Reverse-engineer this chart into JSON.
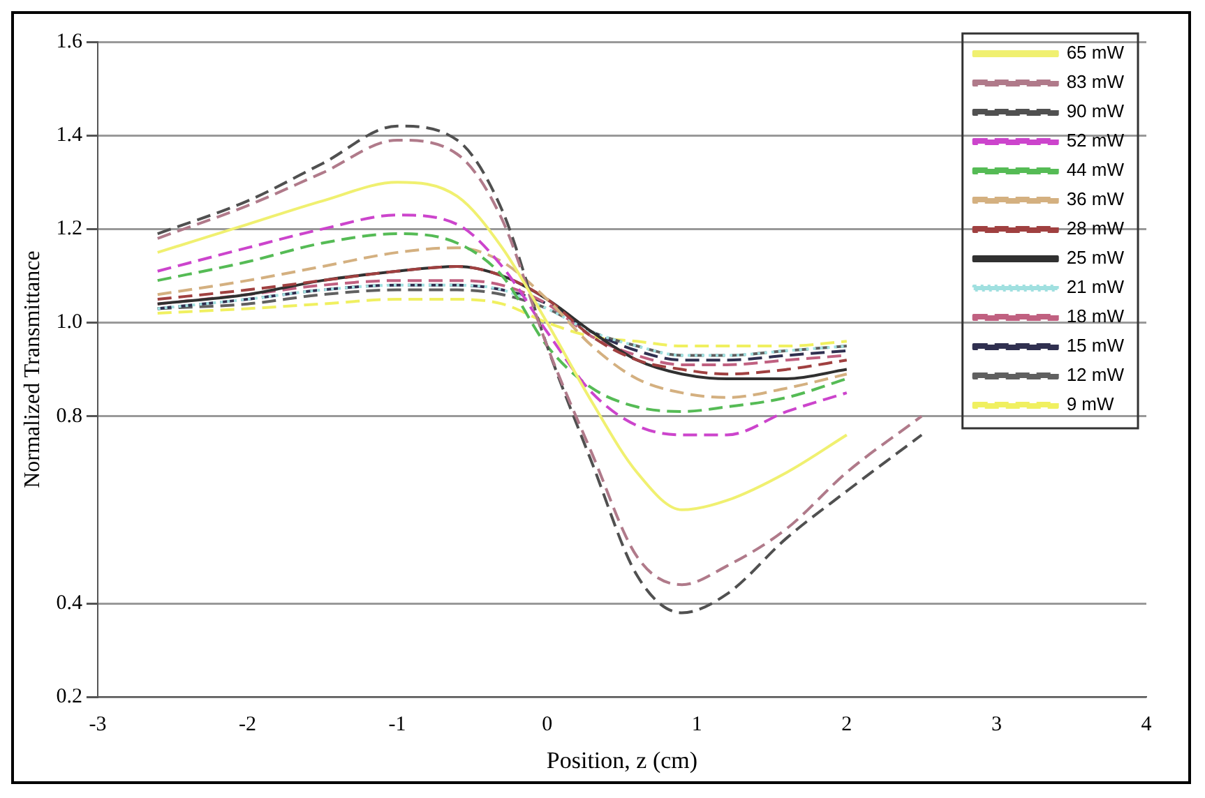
{
  "chart_data": {
    "type": "line",
    "xlabel": "Position, z (cm)",
    "ylabel": "Normalized Transmittance",
    "x": [
      -2.6,
      -2,
      -1.5,
      -1,
      -0.6,
      -0.3,
      0,
      0.3,
      0.6,
      0.9,
      1.2,
      1.6,
      2,
      2.5
    ],
    "xlim": [
      -3,
      4
    ],
    "xticks": [
      -3,
      -2,
      -1,
      0,
      1,
      2,
      3,
      4
    ],
    "ylim": [
      0.2,
      1.6
    ],
    "yticks": [
      0.2,
      0.4,
      0.8,
      {
        "value": 1,
        "label": "1.0"
      },
      1.2,
      1.4,
      1.6
    ],
    "grid": "y",
    "legend": "top right",
    "marker": "none",
    "series": [
      {
        "name": "65 mW",
        "color": "#f0f070",
        "line_style": "solid",
        "values": [
          1.15,
          1.21,
          1.26,
          1.3,
          1.27,
          1.16,
          1.0,
          0.83,
          0.68,
          0.6,
          0.62,
          0.68,
          0.76,
          null
        ]
      },
      {
        "name": "83 mW",
        "color": "#b07a8a",
        "line_style": "dashed",
        "values": [
          1.18,
          1.25,
          1.32,
          1.39,
          1.36,
          1.22,
          0.95,
          0.72,
          0.5,
          0.44,
          0.48,
          0.56,
          0.68,
          0.8
        ]
      },
      {
        "name": "90 mW",
        "color": "#505050",
        "line_style": "dashed",
        "values": [
          1.19,
          1.26,
          1.34,
          1.42,
          1.39,
          1.24,
          0.95,
          0.7,
          0.46,
          0.38,
          0.42,
          0.54,
          0.64,
          0.76
        ]
      },
      {
        "name": "52 mW",
        "color": "#cc44cc",
        "line_style": "dashed",
        "values": [
          1.11,
          1.16,
          1.2,
          1.23,
          1.21,
          1.12,
          0.98,
          0.85,
          0.78,
          0.76,
          0.76,
          0.81,
          0.85,
          null
        ]
      },
      {
        "name": "44 mW",
        "color": "#55bb55",
        "line_style": "dashed",
        "values": [
          1.09,
          1.13,
          1.17,
          1.19,
          1.17,
          1.1,
          0.95,
          0.86,
          0.82,
          0.81,
          0.82,
          0.84,
          0.88,
          null
        ]
      },
      {
        "name": "36 mW",
        "color": "#d4b080",
        "line_style": "dashed",
        "values": [
          1.06,
          1.09,
          1.12,
          1.15,
          1.16,
          1.13,
          1.05,
          0.95,
          0.88,
          0.85,
          0.84,
          0.86,
          0.89,
          null
        ]
      },
      {
        "name": "28 mW",
        "color": "#a04040",
        "line_style": "dashed",
        "values": [
          1.05,
          1.07,
          1.09,
          1.11,
          1.12,
          1.1,
          1.05,
          0.97,
          0.92,
          0.9,
          0.89,
          0.9,
          0.92,
          null
        ]
      },
      {
        "name": "25 mW",
        "color": "#303030",
        "line_style": "solid",
        "values": [
          1.04,
          1.06,
          1.09,
          1.11,
          1.12,
          1.1,
          1.05,
          0.98,
          0.92,
          0.89,
          0.88,
          0.88,
          0.9,
          null
        ]
      },
      {
        "name": "21 mW",
        "color": "#a0e0e0",
        "line_style": "dotted",
        "values": [
          1.03,
          1.05,
          1.07,
          1.08,
          1.08,
          1.07,
          1.03,
          0.98,
          0.95,
          0.93,
          0.93,
          0.94,
          0.95,
          null
        ]
      },
      {
        "name": "18 mW",
        "color": "#c06080",
        "line_style": "dashed",
        "values": [
          1.04,
          1.06,
          1.08,
          1.09,
          1.09,
          1.08,
          1.04,
          0.97,
          0.93,
          0.91,
          0.91,
          0.92,
          0.93,
          null
        ]
      },
      {
        "name": "15 mW",
        "color": "#303050",
        "line_style": "dashed",
        "values": [
          1.03,
          1.05,
          1.07,
          1.08,
          1.08,
          1.07,
          1.04,
          0.98,
          0.94,
          0.92,
          0.92,
          0.93,
          0.94,
          null
        ]
      },
      {
        "name": "12 mW",
        "color": "#606060",
        "line_style": "dashed",
        "values": [
          1.03,
          1.04,
          1.06,
          1.07,
          1.07,
          1.06,
          1.03,
          0.98,
          0.95,
          0.93,
          0.93,
          0.94,
          0.95,
          null
        ]
      },
      {
        "name": "9 mW",
        "color": "#f0f060",
        "line_style": "dashed",
        "values": [
          1.02,
          1.03,
          1.04,
          1.05,
          1.05,
          1.04,
          1.0,
          0.97,
          0.96,
          0.95,
          0.95,
          0.95,
          0.96,
          null
        ]
      }
    ]
  }
}
